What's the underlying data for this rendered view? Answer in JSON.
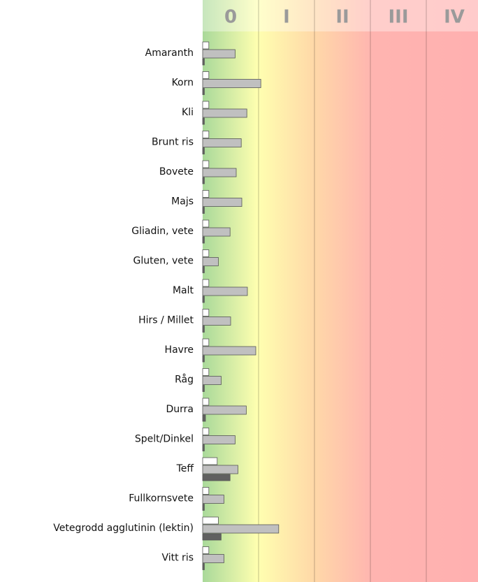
{
  "chart_data": {
    "type": "bar",
    "orientation": "horizontal",
    "classes": [
      "0",
      "I",
      "II",
      "III",
      "IV"
    ],
    "categories": [
      "Amaranth",
      "Korn",
      "Kli",
      "Brunt ris",
      "Bovete",
      "Majs",
      "Gliadin, vete",
      "Gluten, vete",
      "Malt",
      "Hirs / Millet",
      "Havre",
      "Råg",
      "Durra",
      "Spelt/Dinkel",
      "Teff",
      "Fullkornsvete",
      "Vetegrodd agglutinin (lektin)",
      "Vitt ris"
    ],
    "series": [
      {
        "color": "#ffffff",
        "values": [
          0.11,
          0.11,
          0.11,
          0.11,
          0.11,
          0.11,
          0.11,
          0.11,
          0.11,
          0.11,
          0.11,
          0.11,
          0.11,
          0.11,
          0.26,
          0.11,
          0.28,
          0.11
        ]
      },
      {
        "color": "#c0c0c0",
        "values": [
          0.58,
          1.04,
          0.79,
          0.69,
          0.6,
          0.7,
          0.49,
          0.28,
          0.8,
          0.5,
          0.95,
          0.33,
          0.78,
          0.58,
          0.63,
          0.38,
          1.36,
          0.38
        ]
      },
      {
        "color": "#606060",
        "values": [
          0.03,
          0.03,
          0.03,
          0.03,
          0.03,
          0.03,
          0.03,
          0.03,
          0.03,
          0.03,
          0.03,
          0.03,
          0.05,
          0.03,
          0.49,
          0.03,
          0.33,
          0.03
        ]
      }
    ],
    "xlim": [
      0,
      4.925
    ]
  }
}
